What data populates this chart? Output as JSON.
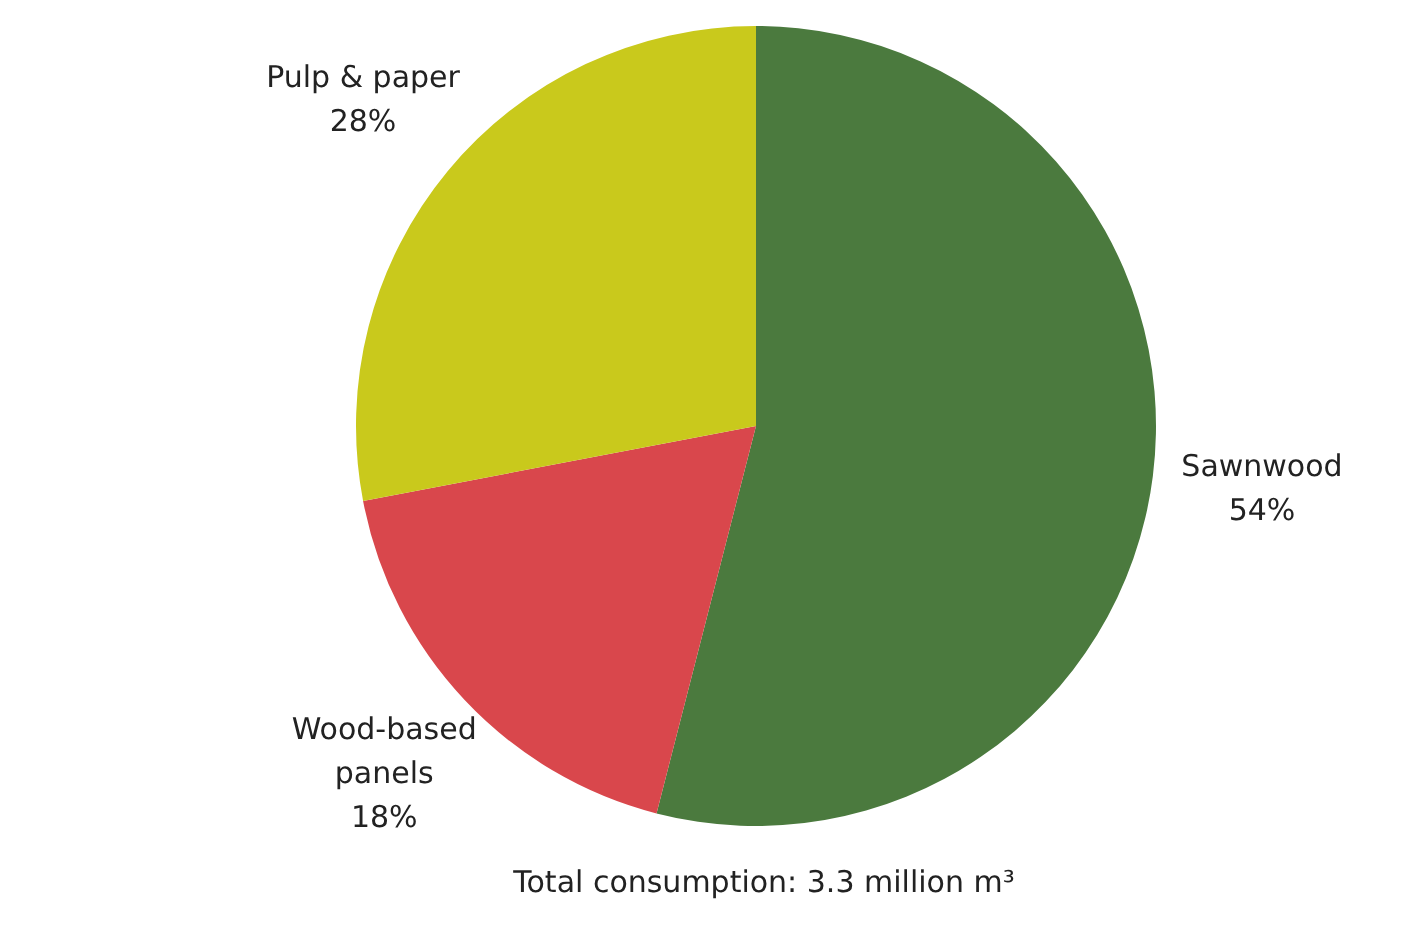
{
  "chart_data": {
    "type": "pie",
    "categories": [
      "Sawnwood",
      "Wood-based panels",
      "Pulp & paper"
    ],
    "values": [
      54,
      18,
      28
    ],
    "value_labels": [
      "54%",
      "18%",
      "28%"
    ],
    "colors": [
      "#4b7a3e",
      "#d9474c",
      "#c9c91c"
    ],
    "annotations": [
      "Total consumption: 3.3 million m³"
    ],
    "legend": false
  }
}
